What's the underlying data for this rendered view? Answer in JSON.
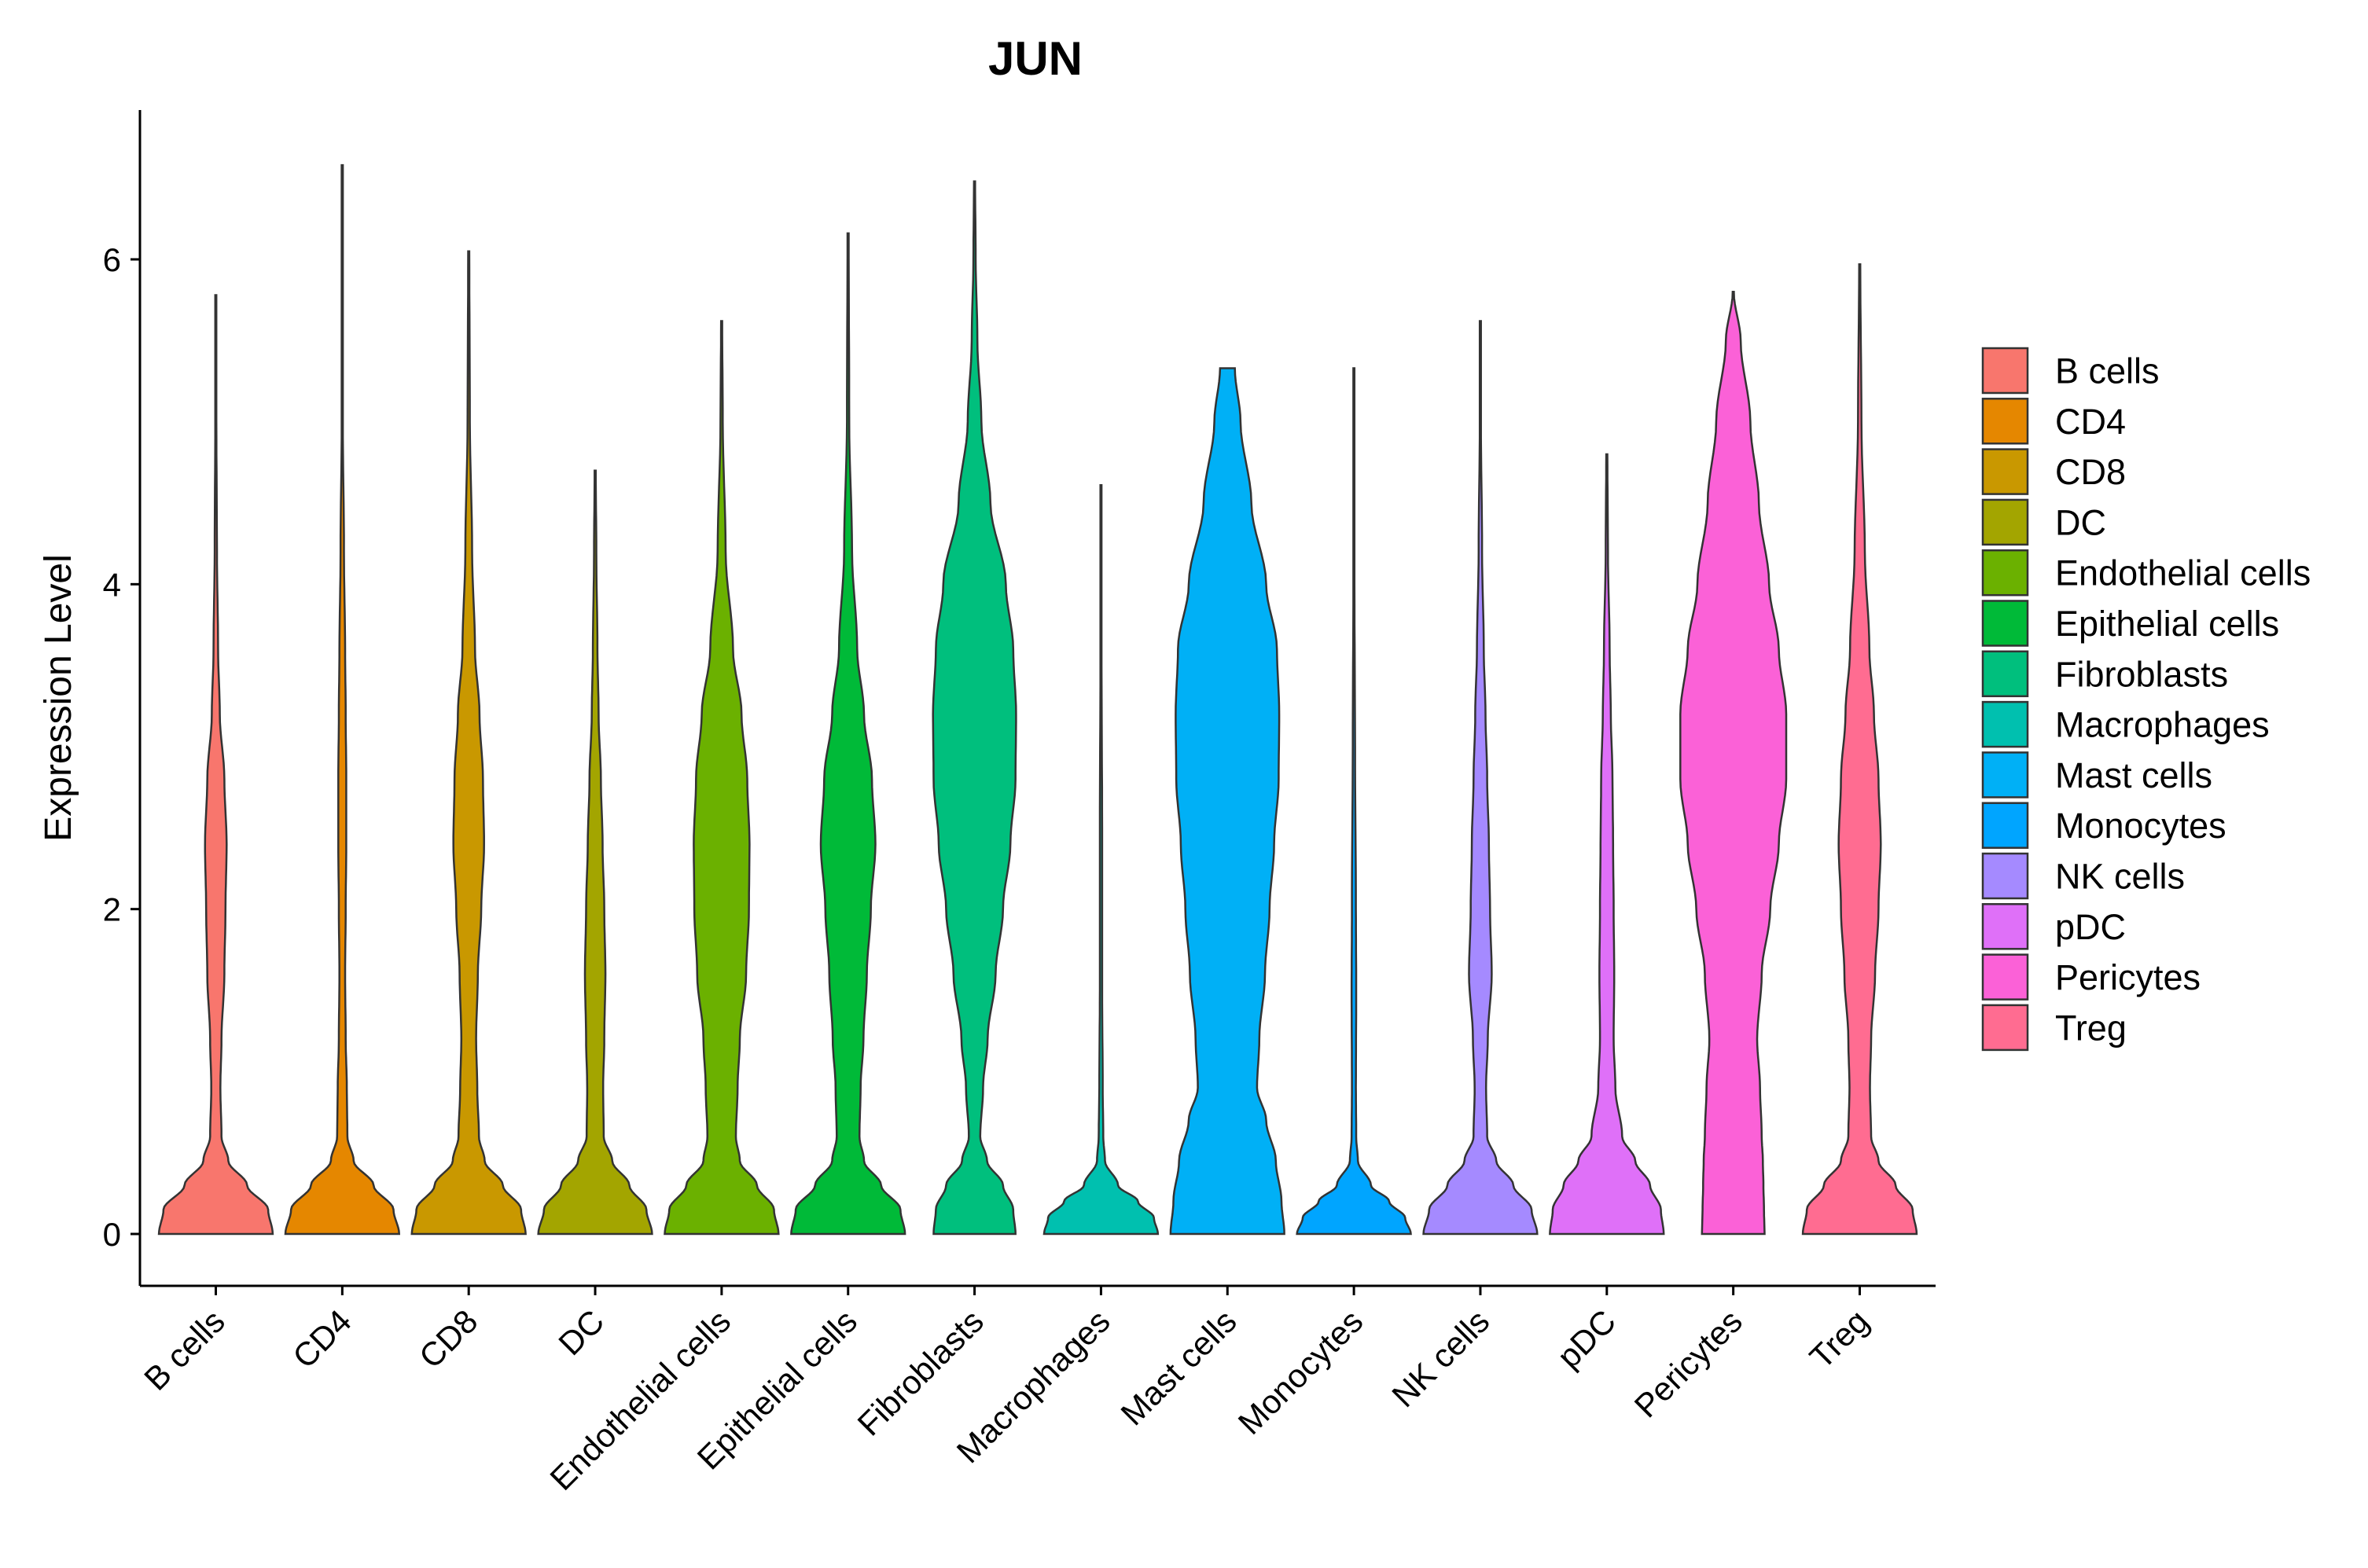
{
  "chart_data": {
    "type": "violin",
    "title": "JUN",
    "xlabel": "",
    "ylabel": "Expression Level",
    "ylim": [
      -0.32,
      6.9
    ],
    "yticks": [
      0,
      2,
      4,
      6
    ],
    "legend_position": "right",
    "categories": [
      "B cells",
      "CD4",
      "CD8",
      "DC",
      "Endothelial cells",
      "Epithelial cells",
      "Fibroblasts",
      "Macrophages",
      "Mast cells",
      "Monocytes",
      "NK cells",
      "pDC",
      "Pericytes",
      "Treg"
    ],
    "series": [
      {
        "name": "B cells",
        "color": "#F8766D",
        "max": 5.78,
        "density": [
          [
            0,
            1.0
          ],
          [
            0.15,
            0.92
          ],
          [
            0.3,
            0.55
          ],
          [
            0.45,
            0.22
          ],
          [
            0.6,
            0.1
          ],
          [
            0.9,
            0.08
          ],
          [
            1.2,
            0.1
          ],
          [
            1.6,
            0.15
          ],
          [
            2.0,
            0.17
          ],
          [
            2.4,
            0.19
          ],
          [
            2.8,
            0.15
          ],
          [
            3.2,
            0.07
          ],
          [
            3.6,
            0.04
          ],
          [
            4.2,
            0.02
          ],
          [
            5.0,
            0.01
          ],
          [
            5.78,
            0.01
          ]
        ]
      },
      {
        "name": "CD4",
        "color": "#E58700",
        "max": 6.58,
        "density": [
          [
            0,
            1.0
          ],
          [
            0.15,
            0.9
          ],
          [
            0.3,
            0.55
          ],
          [
            0.45,
            0.2
          ],
          [
            0.6,
            0.09
          ],
          [
            0.9,
            0.08
          ],
          [
            1.2,
            0.06
          ],
          [
            1.6,
            0.05
          ],
          [
            2.0,
            0.06
          ],
          [
            2.4,
            0.07
          ],
          [
            2.8,
            0.07
          ],
          [
            3.2,
            0.06
          ],
          [
            3.6,
            0.05
          ],
          [
            4.2,
            0.03
          ],
          [
            5.0,
            0.01
          ],
          [
            6.58,
            0.01
          ]
        ]
      },
      {
        "name": "CD8",
        "color": "#C99800",
        "max": 6.05,
        "density": [
          [
            0,
            1.0
          ],
          [
            0.15,
            0.92
          ],
          [
            0.3,
            0.6
          ],
          [
            0.45,
            0.28
          ],
          [
            0.6,
            0.18
          ],
          [
            0.9,
            0.15
          ],
          [
            1.2,
            0.13
          ],
          [
            1.6,
            0.16
          ],
          [
            2.0,
            0.22
          ],
          [
            2.4,
            0.27
          ],
          [
            2.8,
            0.25
          ],
          [
            3.2,
            0.19
          ],
          [
            3.6,
            0.11
          ],
          [
            4.2,
            0.06
          ],
          [
            5.0,
            0.02
          ],
          [
            6.05,
            0.01
          ]
        ]
      },
      {
        "name": "DC",
        "color": "#A3A500",
        "max": 4.7,
        "density": [
          [
            0,
            1.0
          ],
          [
            0.15,
            0.9
          ],
          [
            0.3,
            0.6
          ],
          [
            0.45,
            0.3
          ],
          [
            0.6,
            0.15
          ],
          [
            0.9,
            0.14
          ],
          [
            1.2,
            0.16
          ],
          [
            1.6,
            0.18
          ],
          [
            2.0,
            0.16
          ],
          [
            2.4,
            0.13
          ],
          [
            2.8,
            0.1
          ],
          [
            3.2,
            0.06
          ],
          [
            3.6,
            0.04
          ],
          [
            4.2,
            0.02
          ],
          [
            4.7,
            0.01
          ]
        ]
      },
      {
        "name": "Endothelial cells",
        "color": "#6BB100",
        "max": 5.62,
        "density": [
          [
            0,
            1.0
          ],
          [
            0.15,
            0.92
          ],
          [
            0.3,
            0.62
          ],
          [
            0.45,
            0.32
          ],
          [
            0.6,
            0.25
          ],
          [
            0.9,
            0.28
          ],
          [
            1.2,
            0.32
          ],
          [
            1.6,
            0.43
          ],
          [
            2.0,
            0.48
          ],
          [
            2.4,
            0.49
          ],
          [
            2.8,
            0.45
          ],
          [
            3.2,
            0.35
          ],
          [
            3.6,
            0.2
          ],
          [
            4.2,
            0.07
          ],
          [
            5.0,
            0.02
          ],
          [
            5.62,
            0.01
          ]
        ]
      },
      {
        "name": "Epithelial cells",
        "color": "#00BA38",
        "max": 6.16,
        "density": [
          [
            0,
            1.0
          ],
          [
            0.15,
            0.92
          ],
          [
            0.3,
            0.58
          ],
          [
            0.45,
            0.28
          ],
          [
            0.6,
            0.2
          ],
          [
            0.9,
            0.22
          ],
          [
            1.2,
            0.27
          ],
          [
            1.6,
            0.33
          ],
          [
            2.0,
            0.4
          ],
          [
            2.4,
            0.48
          ],
          [
            2.8,
            0.42
          ],
          [
            3.2,
            0.28
          ],
          [
            3.6,
            0.16
          ],
          [
            4.2,
            0.07
          ],
          [
            5.0,
            0.02
          ],
          [
            6.16,
            0.01
          ]
        ]
      },
      {
        "name": "Fibroblasts",
        "color": "#00BF7D",
        "max": 6.48,
        "density": [
          [
            0,
            0.72
          ],
          [
            0.15,
            0.68
          ],
          [
            0.3,
            0.5
          ],
          [
            0.45,
            0.22
          ],
          [
            0.6,
            0.1
          ],
          [
            0.9,
            0.15
          ],
          [
            1.2,
            0.23
          ],
          [
            1.6,
            0.37
          ],
          [
            2.0,
            0.5
          ],
          [
            2.4,
            0.63
          ],
          [
            2.8,
            0.72
          ],
          [
            3.2,
            0.73
          ],
          [
            3.6,
            0.68
          ],
          [
            4.0,
            0.55
          ],
          [
            4.5,
            0.28
          ],
          [
            5.0,
            0.12
          ],
          [
            5.5,
            0.05
          ],
          [
            6.0,
            0.02
          ],
          [
            6.48,
            0.01
          ]
        ]
      },
      {
        "name": "Macrophages",
        "color": "#00C0AF",
        "max": 4.61,
        "density": [
          [
            0,
            1.0
          ],
          [
            0.1,
            0.93
          ],
          [
            0.2,
            0.65
          ],
          [
            0.3,
            0.3
          ],
          [
            0.45,
            0.07
          ],
          [
            0.6,
            0.04
          ],
          [
            0.9,
            0.03
          ],
          [
            1.5,
            0.02
          ],
          [
            2.5,
            0.02
          ],
          [
            3.5,
            0.01
          ],
          [
            4.61,
            0.01
          ]
        ]
      },
      {
        "name": "Mast cells",
        "color": "#00B0F6",
        "max": 5.33,
        "density": [
          [
            0,
            1.0
          ],
          [
            0.2,
            0.95
          ],
          [
            0.45,
            0.85
          ],
          [
            0.7,
            0.68
          ],
          [
            0.9,
            0.52
          ],
          [
            1.2,
            0.56
          ],
          [
            1.6,
            0.66
          ],
          [
            2.0,
            0.74
          ],
          [
            2.4,
            0.82
          ],
          [
            2.8,
            0.9
          ],
          [
            3.2,
            0.91
          ],
          [
            3.6,
            0.87
          ],
          [
            4.0,
            0.68
          ],
          [
            4.5,
            0.42
          ],
          [
            5.0,
            0.23
          ],
          [
            5.33,
            0.13
          ]
        ]
      },
      {
        "name": "Monocytes",
        "color": "#00A5FF",
        "max": 5.33,
        "density": [
          [
            0,
            1.0
          ],
          [
            0.1,
            0.9
          ],
          [
            0.2,
            0.62
          ],
          [
            0.3,
            0.3
          ],
          [
            0.45,
            0.07
          ],
          [
            0.6,
            0.04
          ],
          [
            0.9,
            0.035
          ],
          [
            1.5,
            0.04
          ],
          [
            2.0,
            0.035
          ],
          [
            3.0,
            0.02
          ],
          [
            4.0,
            0.01
          ],
          [
            5.33,
            0.01
          ]
        ]
      },
      {
        "name": "NK cells",
        "color": "#A58AFF",
        "max": 5.62,
        "density": [
          [
            0,
            1.0
          ],
          [
            0.15,
            0.9
          ],
          [
            0.3,
            0.58
          ],
          [
            0.45,
            0.28
          ],
          [
            0.6,
            0.12
          ],
          [
            0.9,
            0.1
          ],
          [
            1.2,
            0.13
          ],
          [
            1.6,
            0.2
          ],
          [
            2.0,
            0.17
          ],
          [
            2.4,
            0.15
          ],
          [
            2.8,
            0.12
          ],
          [
            3.2,
            0.09
          ],
          [
            3.6,
            0.06
          ],
          [
            4.2,
            0.03
          ],
          [
            5.0,
            0.01
          ],
          [
            5.62,
            0.01
          ]
        ]
      },
      {
        "name": "pDC",
        "color": "#DF70F8",
        "max": 4.8,
        "density": [
          [
            0,
            1.0
          ],
          [
            0.15,
            0.95
          ],
          [
            0.3,
            0.76
          ],
          [
            0.45,
            0.5
          ],
          [
            0.6,
            0.27
          ],
          [
            0.9,
            0.15
          ],
          [
            1.2,
            0.12
          ],
          [
            1.6,
            0.13
          ],
          [
            2.0,
            0.12
          ],
          [
            2.4,
            0.11
          ],
          [
            2.8,
            0.1
          ],
          [
            3.2,
            0.07
          ],
          [
            3.6,
            0.05
          ],
          [
            4.2,
            0.02
          ],
          [
            4.8,
            0.01
          ]
        ]
      },
      {
        "name": "Pericytes",
        "color": "#FB61D7",
        "max": 5.8,
        "density": [
          [
            0,
            0.55
          ],
          [
            0.15,
            0.54
          ],
          [
            0.3,
            0.53
          ],
          [
            0.45,
            0.52
          ],
          [
            0.6,
            0.5
          ],
          [
            0.9,
            0.47
          ],
          [
            1.2,
            0.42
          ],
          [
            1.6,
            0.5
          ],
          [
            2.0,
            0.65
          ],
          [
            2.4,
            0.8
          ],
          [
            2.8,
            0.93
          ],
          [
            3.2,
            0.93
          ],
          [
            3.6,
            0.8
          ],
          [
            4.0,
            0.63
          ],
          [
            4.5,
            0.45
          ],
          [
            5.0,
            0.3
          ],
          [
            5.5,
            0.13
          ],
          [
            5.8,
            0.01
          ]
        ]
      },
      {
        "name": "Treg",
        "color": "#FF6C91",
        "max": 5.97,
        "density": [
          [
            0,
            1.0
          ],
          [
            0.15,
            0.93
          ],
          [
            0.3,
            0.63
          ],
          [
            0.45,
            0.33
          ],
          [
            0.6,
            0.2
          ],
          [
            0.9,
            0.18
          ],
          [
            1.2,
            0.2
          ],
          [
            1.6,
            0.27
          ],
          [
            2.0,
            0.33
          ],
          [
            2.4,
            0.37
          ],
          [
            2.8,
            0.33
          ],
          [
            3.2,
            0.25
          ],
          [
            3.6,
            0.17
          ],
          [
            4.2,
            0.09
          ],
          [
            5.0,
            0.03
          ],
          [
            5.97,
            0.01
          ]
        ]
      }
    ]
  }
}
